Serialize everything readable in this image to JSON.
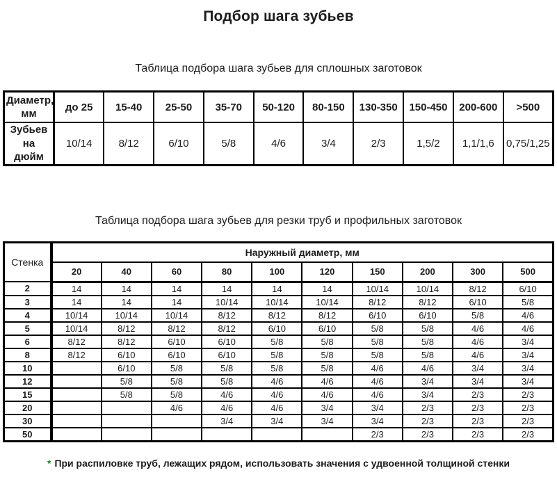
{
  "page": {
    "title": "Подбор шага зубьев",
    "footnote_marker": "*",
    "footnote": "При распиловке труб, лежащих рядом, использовать значения с удвоенной толщиной стенки",
    "colors": {
      "footnote_marker": "#2e7d32",
      "border": "#000000",
      "text": "#1c1c1c",
      "background": "#ffffff"
    }
  },
  "table1": {
    "caption": "Таблица подбора шага зубьев для сплошных заготовок",
    "row1_header_lines": [
      "Диаметр,",
      "мм"
    ],
    "row2_header_lines": [
      "Зубьев на",
      "дюйм"
    ],
    "columns": [
      "до 25",
      "15-40",
      "25-50",
      "35-70",
      "50-120",
      "80-150",
      "130-350",
      "150-450",
      "200-600",
      ">500"
    ],
    "values": [
      "10/14",
      "8/12",
      "6/10",
      "5/8",
      "4/6",
      "3/4",
      "2/3",
      "1,5/2",
      "1,1/1,6",
      "0,75/1,25"
    ]
  },
  "table2": {
    "caption": "Таблица подбора шага зубьев для резки труб и профильных заготовок",
    "corner_label": "Стенка",
    "group_header": "Наружный диаметр, мм",
    "columns": [
      "20",
      "40",
      "60",
      "80",
      "100",
      "120",
      "150",
      "200",
      "300",
      "500"
    ],
    "rows": [
      {
        "wall": "2",
        "cells": [
          "14",
          "14",
          "14",
          "14",
          "14",
          "14",
          "10/14",
          "10/14",
          "8/12",
          "6/10"
        ]
      },
      {
        "wall": "3",
        "cells": [
          "14",
          "14",
          "14",
          "10/14",
          "10/14",
          "10/14",
          "8/12",
          "8/12",
          "6/10",
          "5/8"
        ]
      },
      {
        "wall": "4",
        "cells": [
          "10/14",
          "10/14",
          "10/14",
          "8/12",
          "8/12",
          "8/12",
          "6/10",
          "6/10",
          "5/8",
          "4/6"
        ]
      },
      {
        "wall": "5",
        "cells": [
          "10/14",
          "8/12",
          "8/12",
          "8/12",
          "6/10",
          "6/10",
          "5/8",
          "5/8",
          "4/6",
          "4/6"
        ]
      },
      {
        "wall": "6",
        "cells": [
          "8/12",
          "8/12",
          "6/10",
          "6/10",
          "5/8",
          "5/8",
          "5/8",
          "5/8",
          "4/6",
          "3/4"
        ]
      },
      {
        "wall": "8",
        "cells": [
          "8/12",
          "6/10",
          "6/10",
          "6/10",
          "5/8",
          "5/8",
          "5/8",
          "5/8",
          "4/6",
          "3/4"
        ]
      },
      {
        "wall": "10",
        "cells": [
          "",
          "6/10",
          "5/8",
          "5/8",
          "5/8",
          "5/8",
          "4/6",
          "4/6",
          "3/4",
          "3/4"
        ]
      },
      {
        "wall": "12",
        "cells": [
          "",
          "5/8",
          "5/8",
          "5/8",
          "4/6",
          "4/6",
          "4/6",
          "3/4",
          "3/4",
          "3/4"
        ]
      },
      {
        "wall": "15",
        "cells": [
          "",
          "5/8",
          "5/8",
          "4/6",
          "4/6",
          "4/6",
          "4/6",
          "3/4",
          "2/3",
          "2/3"
        ]
      },
      {
        "wall": "20",
        "cells": [
          "",
          "",
          "4/6",
          "4/6",
          "4/6",
          "3/4",
          "3/4",
          "2/3",
          "2/3",
          "2/3"
        ]
      },
      {
        "wall": "30",
        "cells": [
          "",
          "",
          "",
          "3/4",
          "3/4",
          "3/4",
          "3/4",
          "2/3",
          "2/3",
          "2/3"
        ]
      },
      {
        "wall": "50",
        "cells": [
          "",
          "",
          "",
          "",
          "",
          "",
          "2/3",
          "2/3",
          "2/3",
          "2/3"
        ]
      }
    ]
  }
}
